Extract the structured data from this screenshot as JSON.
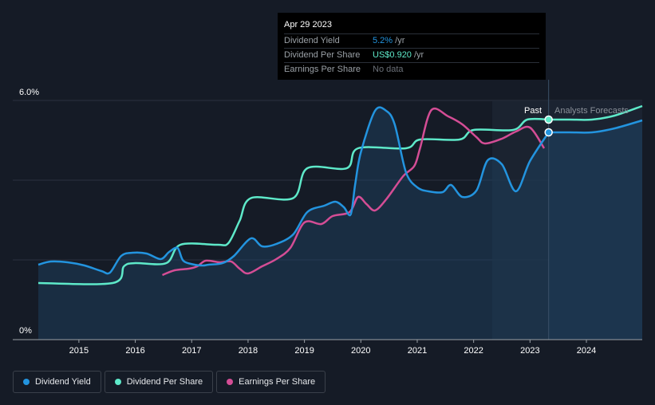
{
  "tooltip": {
    "date": "Apr 29 2023",
    "dividend_yield_label": "Dividend Yield",
    "dividend_yield_value": "5.2%",
    "dividend_yield_unit": " /yr",
    "dps_label": "Dividend Per Share",
    "dps_value": "US$0.920",
    "dps_unit": " /yr",
    "eps_label": "Earnings Per Share",
    "eps_value": "No data"
  },
  "legend": {
    "dividend_yield": "Dividend Yield",
    "dividend_per_share": "Dividend Per Share",
    "earnings_per_share": "Earnings Per Share"
  },
  "colors": {
    "dividend_yield": "#2394df",
    "dividend_per_share": "#5ee9c9",
    "earnings_per_share": "#d44d95",
    "background": "#151b26"
  },
  "chart_data": {
    "type": "line",
    "title": "",
    "xlabel": "",
    "ylabel": "",
    "x_ticks": [
      "2015",
      "2016",
      "2017",
      "2018",
      "2019",
      "2020",
      "2021",
      "2022",
      "2023",
      "2024"
    ],
    "y_ticks": [
      "0%",
      "6.0%"
    ],
    "ylim": [
      0,
      6.0
    ],
    "xlim": [
      2014.28,
      2024.99
    ],
    "past_label": "Past",
    "forecast_label": "Analysts Forecasts",
    "forecast_start": 2023.33,
    "highlight_start": 2022.33,
    "series": [
      {
        "name": "Dividend Yield",
        "key": "dividend_yield",
        "points": [
          [
            2014.28,
            1.88
          ],
          [
            2014.5,
            1.96
          ],
          [
            2014.8,
            1.94
          ],
          [
            2015.1,
            1.86
          ],
          [
            2015.4,
            1.72
          ],
          [
            2015.55,
            1.68
          ],
          [
            2015.75,
            2.1
          ],
          [
            2015.95,
            2.18
          ],
          [
            2016.2,
            2.16
          ],
          [
            2016.45,
            2.02
          ],
          [
            2016.6,
            2.2
          ],
          [
            2016.75,
            2.3
          ],
          [
            2016.85,
            1.98
          ],
          [
            2017.05,
            1.88
          ],
          [
            2017.2,
            1.86
          ],
          [
            2017.3,
            1.88
          ],
          [
            2017.55,
            1.92
          ],
          [
            2017.75,
            2.1
          ],
          [
            2018.05,
            2.54
          ],
          [
            2018.25,
            2.34
          ],
          [
            2018.5,
            2.4
          ],
          [
            2018.8,
            2.64
          ],
          [
            2019.05,
            3.2
          ],
          [
            2019.35,
            3.36
          ],
          [
            2019.55,
            3.46
          ],
          [
            2019.7,
            3.32
          ],
          [
            2019.82,
            3.14
          ],
          [
            2019.9,
            3.9
          ],
          [
            2020.0,
            4.7
          ],
          [
            2020.25,
            5.74
          ],
          [
            2020.45,
            5.74
          ],
          [
            2020.6,
            5.4
          ],
          [
            2020.8,
            4.2
          ],
          [
            2021.0,
            3.82
          ],
          [
            2021.2,
            3.72
          ],
          [
            2021.45,
            3.7
          ],
          [
            2021.6,
            3.88
          ],
          [
            2021.8,
            3.58
          ],
          [
            2022.05,
            3.74
          ],
          [
            2022.25,
            4.5
          ],
          [
            2022.5,
            4.4
          ],
          [
            2022.75,
            3.72
          ],
          [
            2023.0,
            4.48
          ],
          [
            2023.33,
            5.2
          ]
        ]
      },
      {
        "name": "Dividend Per Share",
        "key": "dividend_per_share",
        "points": [
          [
            2014.28,
            1.42
          ],
          [
            2015.6,
            1.42
          ],
          [
            2015.8,
            1.84
          ],
          [
            2016.0,
            1.92
          ],
          [
            2016.55,
            1.92
          ],
          [
            2016.8,
            2.38
          ],
          [
            2017.45,
            2.38
          ],
          [
            2017.65,
            2.42
          ],
          [
            2017.85,
            2.98
          ],
          [
            2018.05,
            3.55
          ],
          [
            2018.8,
            3.55
          ],
          [
            2019.05,
            4.3
          ],
          [
            2019.75,
            4.3
          ],
          [
            2019.95,
            4.8
          ],
          [
            2020.8,
            4.8
          ],
          [
            2021.05,
            5.02
          ],
          [
            2021.75,
            5.02
          ],
          [
            2022.0,
            5.26
          ],
          [
            2022.7,
            5.26
          ],
          [
            2022.95,
            5.52
          ],
          [
            2023.33,
            5.52
          ]
        ]
      },
      {
        "name": "Earnings Per Share",
        "key": "earnings_per_share",
        "points": [
          [
            2016.48,
            1.62
          ],
          [
            2016.7,
            1.74
          ],
          [
            2016.95,
            1.78
          ],
          [
            2017.1,
            1.84
          ],
          [
            2017.25,
            1.98
          ],
          [
            2017.5,
            1.94
          ],
          [
            2017.7,
            1.96
          ],
          [
            2017.85,
            1.78
          ],
          [
            2018.0,
            1.66
          ],
          [
            2018.25,
            1.84
          ],
          [
            2018.5,
            2.02
          ],
          [
            2018.75,
            2.3
          ],
          [
            2019.0,
            2.94
          ],
          [
            2019.3,
            2.9
          ],
          [
            2019.5,
            3.1
          ],
          [
            2019.8,
            3.2
          ],
          [
            2019.95,
            3.58
          ],
          [
            2020.1,
            3.4
          ],
          [
            2020.25,
            3.24
          ],
          [
            2020.45,
            3.52
          ],
          [
            2020.75,
            4.1
          ],
          [
            2020.95,
            4.36
          ],
          [
            2021.05,
            4.8
          ],
          [
            2021.25,
            5.76
          ],
          [
            2021.55,
            5.6
          ],
          [
            2021.8,
            5.4
          ],
          [
            2022.05,
            5.08
          ],
          [
            2022.2,
            4.92
          ],
          [
            2022.5,
            5.04
          ],
          [
            2022.75,
            5.22
          ],
          [
            2023.0,
            5.32
          ],
          [
            2023.25,
            4.8
          ]
        ]
      },
      {
        "name": "Dividend Yield Forecast",
        "key": "dividend_yield_forecast",
        "points": [
          [
            2023.33,
            5.2
          ],
          [
            2023.7,
            5.2
          ],
          [
            2024.1,
            5.2
          ],
          [
            2024.5,
            5.3
          ],
          [
            2024.99,
            5.5
          ]
        ]
      },
      {
        "name": "Dividend Per Share Forecast",
        "key": "dps_forecast",
        "points": [
          [
            2023.33,
            5.52
          ],
          [
            2023.7,
            5.52
          ],
          [
            2024.1,
            5.52
          ],
          [
            2024.5,
            5.62
          ],
          [
            2024.99,
            5.86
          ]
        ]
      }
    ]
  }
}
